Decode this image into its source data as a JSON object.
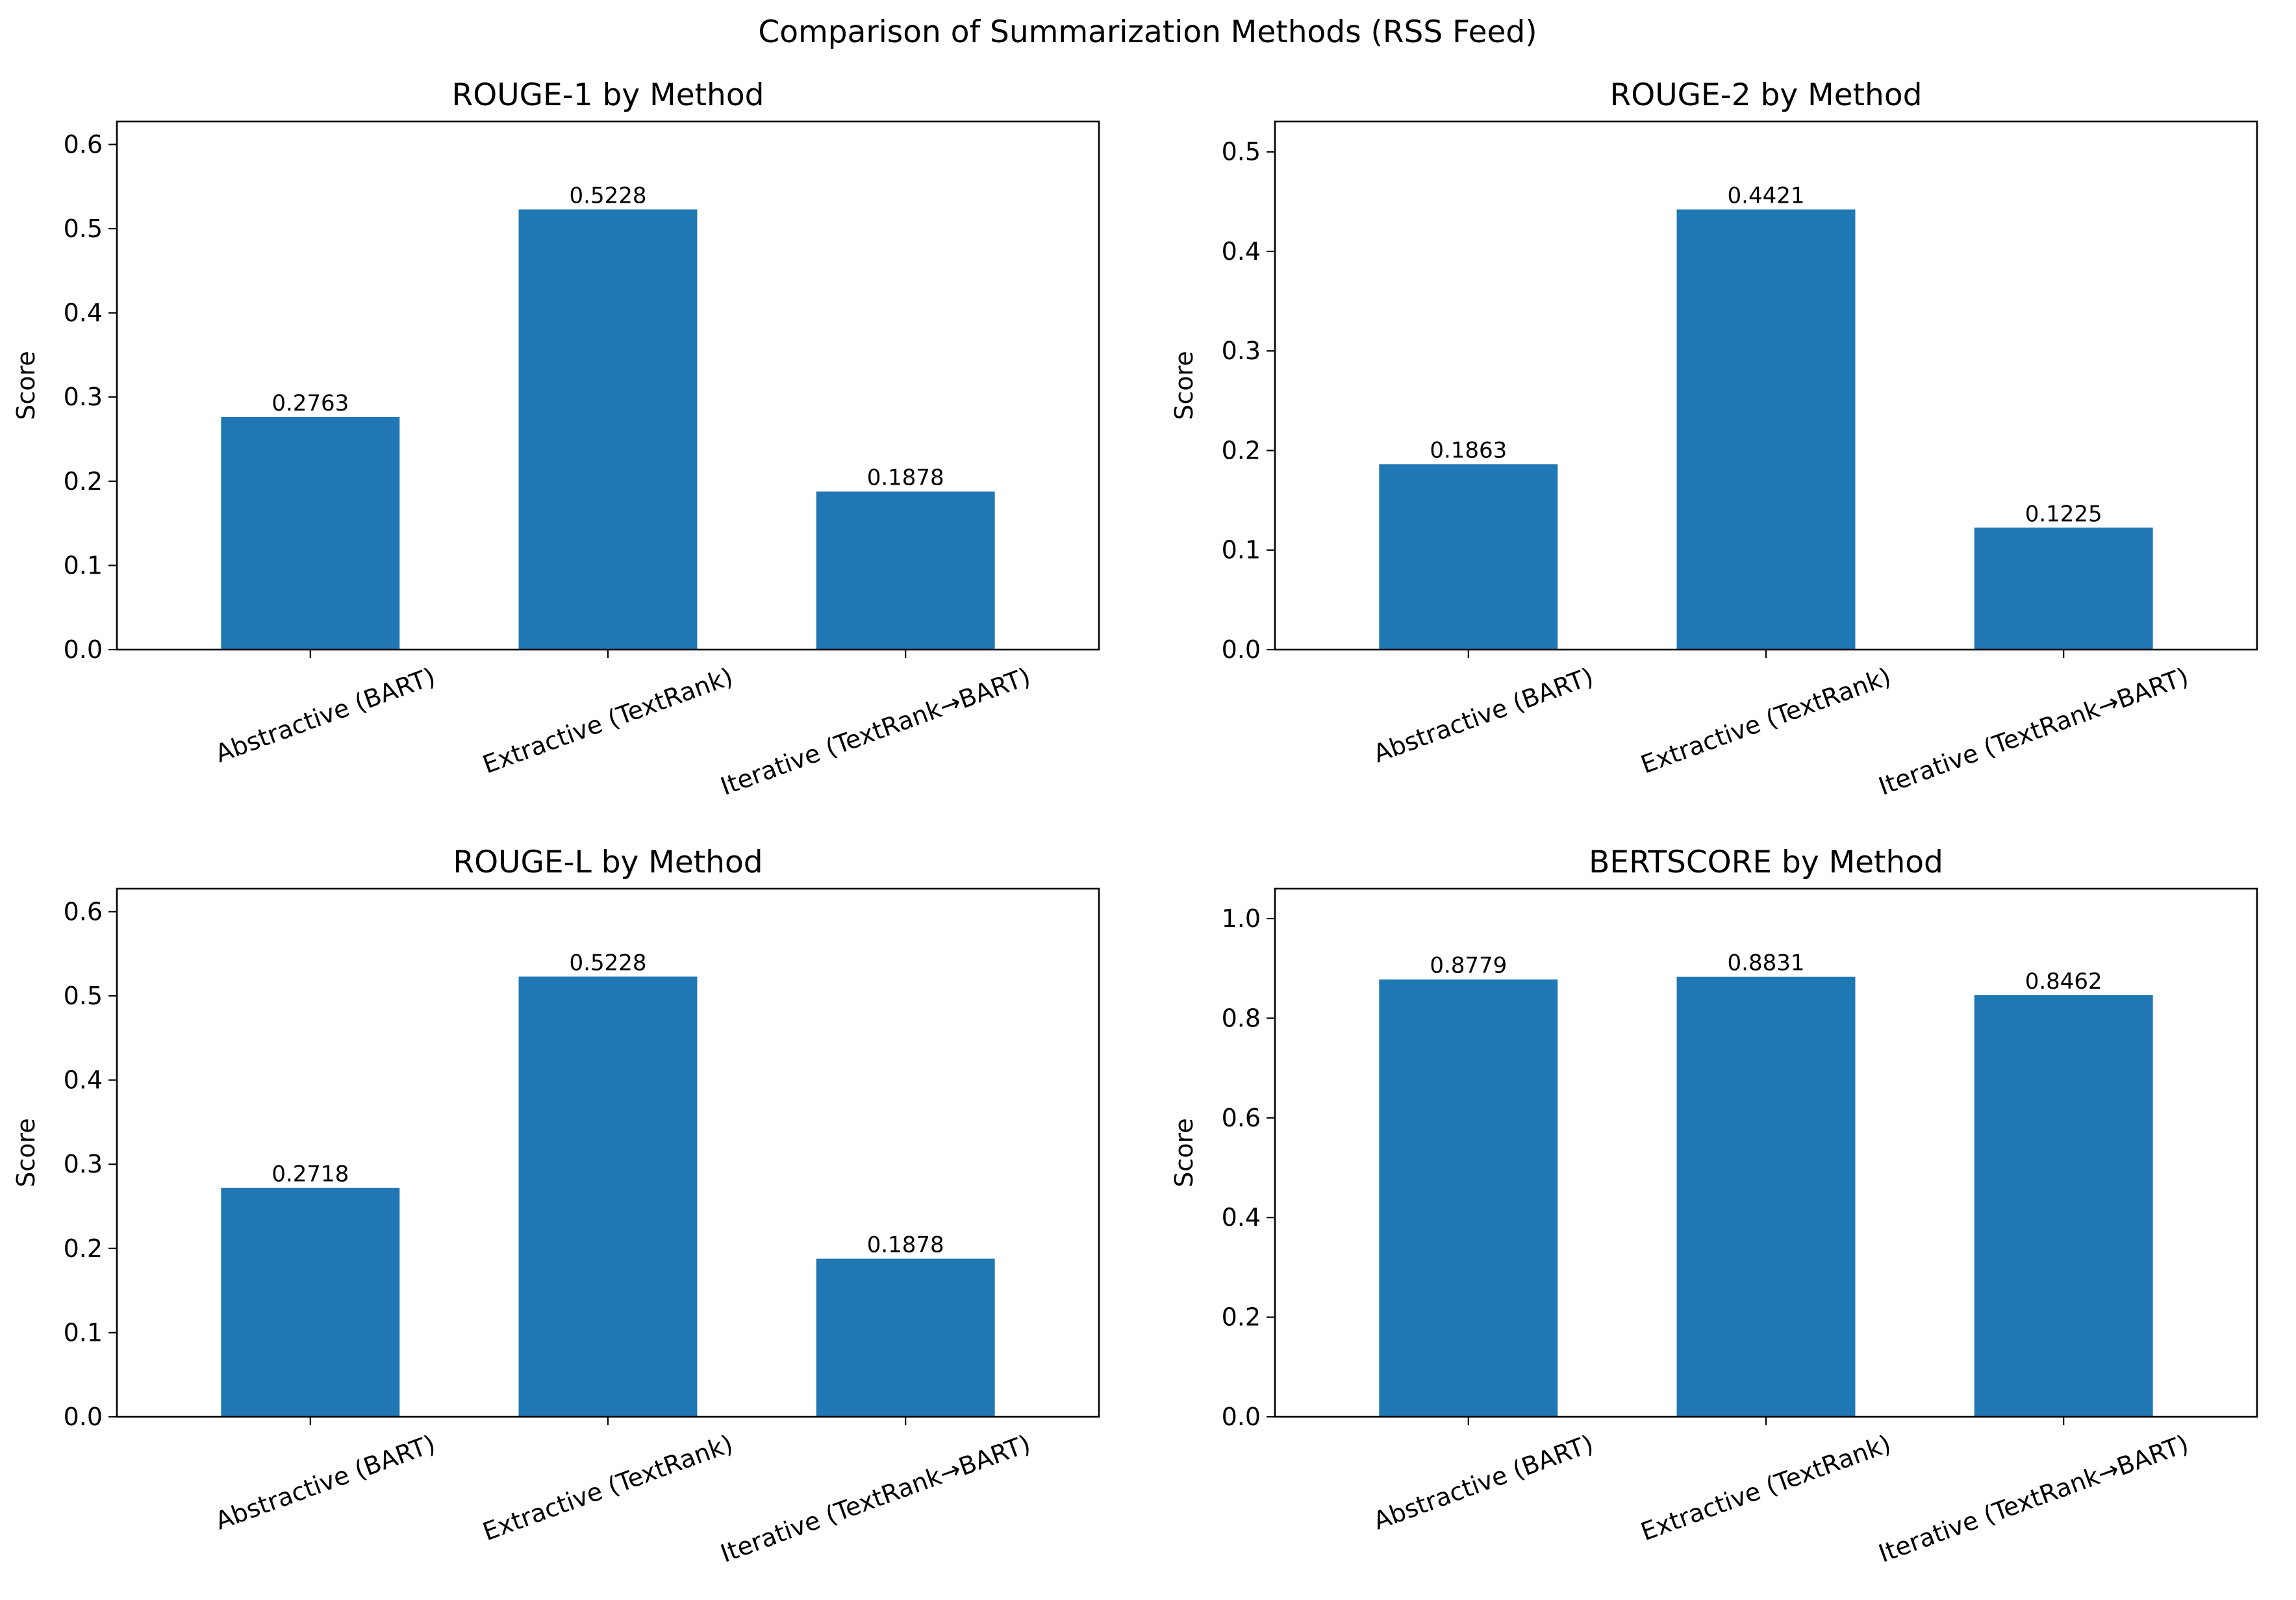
{
  "figure": {
    "title": "Comparison of Summarization Methods (RSS Feed)"
  },
  "chart_data": [
    {
      "type": "bar",
      "title": "ROUGE-1 by Method",
      "xlabel": "",
      "ylabel": "Score",
      "categories": [
        "Abstractive (BART)",
        "Extractive (TextRank)",
        "Iterative (TextRank→BART)"
      ],
      "values": [
        0.2763,
        0.5228,
        0.1878
      ],
      "value_labels": [
        "0.2763",
        "0.5228",
        "0.1878"
      ],
      "ylim": [
        0,
        0.6273
      ],
      "yticks": [
        0.0,
        0.1,
        0.2,
        0.3,
        0.4,
        0.5,
        0.6
      ],
      "ytick_labels": [
        "0.0",
        "0.1",
        "0.2",
        "0.3",
        "0.4",
        "0.5",
        "0.6"
      ],
      "bar_color": "#1f77b4",
      "grid": false
    },
    {
      "type": "bar",
      "title": "ROUGE-2 by Method",
      "xlabel": "",
      "ylabel": "Score",
      "categories": [
        "Abstractive (BART)",
        "Extractive (TextRank)",
        "Iterative (TextRank→BART)"
      ],
      "values": [
        0.1863,
        0.4421,
        0.1225
      ],
      "value_labels": [
        "0.1863",
        "0.4421",
        "0.1225"
      ],
      "ylim": [
        0,
        0.5305
      ],
      "yticks": [
        0.0,
        0.1,
        0.2,
        0.3,
        0.4,
        0.5
      ],
      "ytick_labels": [
        "0.0",
        "0.1",
        "0.2",
        "0.3",
        "0.4",
        "0.5"
      ],
      "bar_color": "#1f77b4",
      "grid": false
    },
    {
      "type": "bar",
      "title": "ROUGE-L by Method",
      "xlabel": "",
      "ylabel": "Score",
      "categories": [
        "Abstractive (BART)",
        "Extractive (TextRank)",
        "Iterative (TextRank→BART)"
      ],
      "values": [
        0.2718,
        0.5228,
        0.1878
      ],
      "value_labels": [
        "0.2718",
        "0.5228",
        "0.1878"
      ],
      "ylim": [
        0,
        0.6273
      ],
      "yticks": [
        0.0,
        0.1,
        0.2,
        0.3,
        0.4,
        0.5,
        0.6
      ],
      "ytick_labels": [
        "0.0",
        "0.1",
        "0.2",
        "0.3",
        "0.4",
        "0.5",
        "0.6"
      ],
      "bar_color": "#1f77b4",
      "grid": false
    },
    {
      "type": "bar",
      "title": "BERTSCORE by Method",
      "xlabel": "",
      "ylabel": "Score",
      "categories": [
        "Abstractive (BART)",
        "Extractive (TextRank)",
        "Iterative (TextRank→BART)"
      ],
      "values": [
        0.8779,
        0.8831,
        0.8462
      ],
      "value_labels": [
        "0.8779",
        "0.8831",
        "0.8462"
      ],
      "ylim": [
        0,
        1.06
      ],
      "yticks": [
        0.0,
        0.2,
        0.4,
        0.6,
        0.8,
        1.0
      ],
      "ytick_labels": [
        "0.0",
        "0.2",
        "0.4",
        "0.6",
        "0.8",
        "1.0"
      ],
      "bar_color": "#1f77b4",
      "grid": false
    }
  ]
}
